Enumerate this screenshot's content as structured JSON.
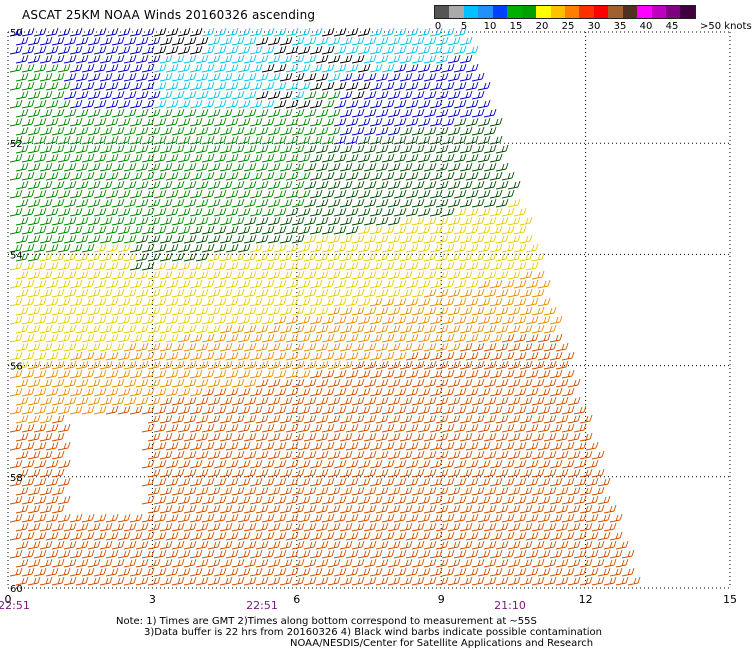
{
  "header": {
    "title": "ASCAT 25KM NOAA Winds 20160326 ascending"
  },
  "legend": {
    "colors": [
      "#555555",
      "#aaaaaa",
      "#00c0ff",
      "#2090ff",
      "#0040ff",
      "#00b000",
      "#00a000",
      "#ffff00",
      "#ffc000",
      "#ff8000",
      "#ff3000",
      "#ff0000",
      "#a06030",
      "#503020",
      "#ff00ff",
      "#c000c0",
      "#800080",
      "#400040"
    ],
    "labels": [
      "0",
      "5",
      "10",
      "15",
      "20",
      "25",
      "30",
      "35",
      "40",
      "45"
    ],
    "max_label": ">50 knots"
  },
  "map": {
    "lat_labels": [
      "50",
      "52",
      "54",
      "56",
      "58",
      "60"
    ],
    "lon_labels": [
      "0",
      "3",
      "6",
      "9",
      "12",
      "15"
    ],
    "time_labels": [
      "22:51",
      "22:51",
      "21:10"
    ],
    "swath_colors": {
      "black": "#000000",
      "light_blue": "#00c8e8",
      "blue": "#0000cc",
      "green": "#008800",
      "dark_green": "#004f00",
      "yellow": "#e8d000",
      "orange": "#e89000",
      "dark_orange": "#d05000"
    }
  },
  "footer": {
    "note_line1": "Note: 1) Times are GMT 2)Times along bottom correspond to measurement at ~55S",
    "note_line2": "3)Data buffer is 22 hrs from 20160326 4) Black wind barbs indicate possible contamination",
    "note_line3": "NOAA/NESDIS/Center for Satellite Applications and Research"
  }
}
